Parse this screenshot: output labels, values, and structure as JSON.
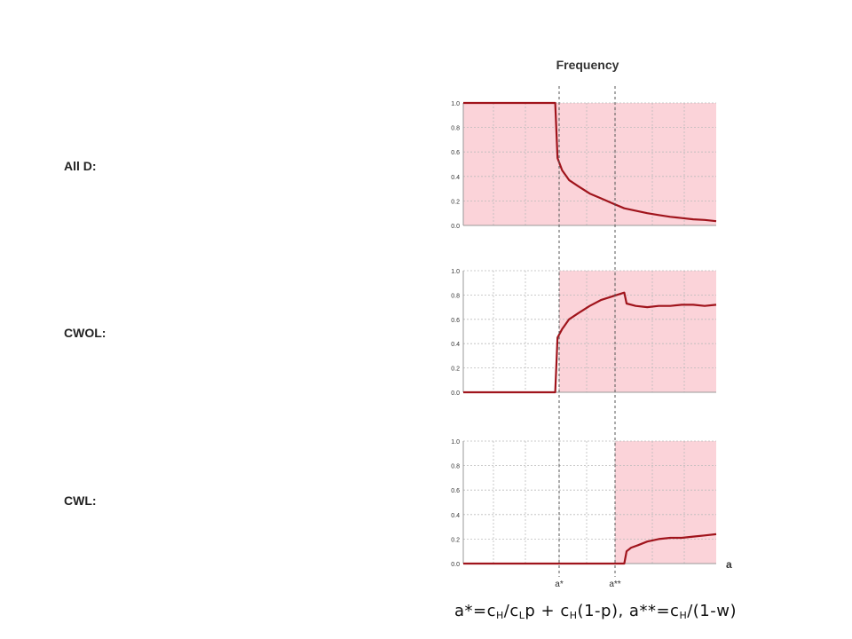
{
  "figure_title": "Frequency",
  "x_axis_label": "a",
  "threshold_labels": [
    "a*",
    "a**"
  ],
  "caption": {
    "a_star": {
      "lhs": "a*=c",
      "s1": "H",
      "p1": "/c",
      "s2": "L",
      "p2": "p + c",
      "s3": "H",
      "p3": "(1-p), "
    },
    "a_star_star": {
      "lhs": "a**=c",
      "s1": "H",
      "p1": "/(1-w)"
    }
  },
  "colors": {
    "line": "#a0141c",
    "shade": "#fbd3d9",
    "grid": "#bbbbbb",
    "threshold": "#555555",
    "axis_text": "#333333"
  },
  "chart_data": [
    {
      "type": "line",
      "title": "All D:",
      "ylim": [
        0,
        1
      ],
      "yticks": [
        "0.0",
        "0.2",
        "0.4",
        "0.6",
        "0.8",
        "1.0"
      ],
      "shaded_region": "full",
      "x": [
        0,
        1,
        2,
        3,
        4,
        4.1,
        4.3,
        4.6,
        5,
        5.5,
        6,
        6.5,
        7,
        7.5,
        8,
        8.5,
        9,
        9.5,
        10,
        10.5,
        11
      ],
      "values": [
        1,
        1,
        1,
        1,
        1,
        0.55,
        0.45,
        0.37,
        0.32,
        0.26,
        0.22,
        0.18,
        0.14,
        0.12,
        0.1,
        0.085,
        0.07,
        0.06,
        0.05,
        0.045,
        0.035
      ]
    },
    {
      "type": "line",
      "title": "CWOL:",
      "ylim": [
        0,
        1
      ],
      "yticks": [
        "0.0",
        "0.2",
        "0.4",
        "0.6",
        "0.8",
        "1.0"
      ],
      "shaded_region": "from_a_star",
      "x": [
        0,
        1,
        2,
        3,
        4,
        4.1,
        4.3,
        4.6,
        5,
        5.5,
        6,
        6.5,
        7,
        7.1,
        7.5,
        8,
        8.5,
        9,
        9.5,
        10,
        10.5,
        11
      ],
      "values": [
        0,
        0,
        0,
        0,
        0,
        0.45,
        0.52,
        0.6,
        0.65,
        0.71,
        0.76,
        0.79,
        0.82,
        0.73,
        0.71,
        0.7,
        0.71,
        0.71,
        0.72,
        0.72,
        0.71,
        0.72
      ]
    },
    {
      "type": "line",
      "title": "CWL:",
      "ylim": [
        0,
        1
      ],
      "yticks": [
        "0.0",
        "0.2",
        "0.4",
        "0.6",
        "0.8",
        "1.0"
      ],
      "shaded_region": "from_a_star_star",
      "x": [
        0,
        1,
        2,
        3,
        4,
        5,
        6,
        7,
        7.1,
        7.3,
        7.6,
        8,
        8.5,
        9,
        9.5,
        10,
        10.5,
        11
      ],
      "values": [
        0,
        0,
        0,
        0,
        0,
        0,
        0,
        0,
        0.1,
        0.13,
        0.15,
        0.18,
        0.2,
        0.21,
        0.21,
        0.22,
        0.23,
        0.24
      ]
    }
  ]
}
